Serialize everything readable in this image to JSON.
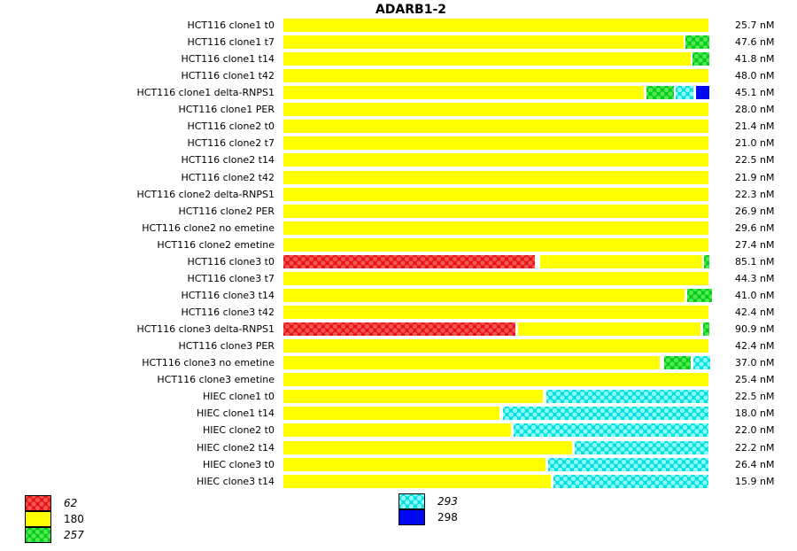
{
  "chart_data": {
    "type": "bar",
    "orientation": "horizontal-stacked",
    "title": "ADARB1-2",
    "unit": "nM",
    "bar_span_percent": [
      0,
      100
    ],
    "colors": {
      "62": {
        "base": "#e81414",
        "dot": "#f25454",
        "patterned": true
      },
      "180": {
        "base": "#ffff00",
        "patterned": false
      },
      "257": {
        "base": "#00cd1b",
        "dot": "#52e852",
        "patterned": true
      },
      "293": {
        "base": "#00dede",
        "dot": "#8afffb",
        "patterned": true
      },
      "298": {
        "base": "#0008f0",
        "patterned": false
      }
    },
    "legend": {
      "left_items": [
        {
          "id": "62",
          "italic": true
        },
        {
          "id": "180",
          "italic": false
        },
        {
          "id": "257",
          "italic": true
        }
      ],
      "right_items": [
        {
          "id": "293",
          "italic": true
        },
        {
          "id": "298",
          "italic": false
        }
      ]
    },
    "rows": [
      {
        "label": "HCT116 clone1 t0",
        "value": "25.7",
        "segments": [
          {
            "id": "180",
            "from": 0,
            "to": 100
          }
        ]
      },
      {
        "label": "HCT116 clone1 t7",
        "value": "47.6",
        "segments": [
          {
            "id": "180",
            "from": 0,
            "to": 94.2
          },
          {
            "id": "257",
            "from": 94.6,
            "to": 100.2
          }
        ]
      },
      {
        "label": "HCT116 clone1 t14",
        "value": "41.8",
        "segments": [
          {
            "id": "180",
            "from": 0,
            "to": 95.9
          },
          {
            "id": "257",
            "from": 96.3,
            "to": 100.2
          }
        ]
      },
      {
        "label": "HCT116 clone1 t42",
        "value": "48.0",
        "segments": [
          {
            "id": "180",
            "from": 0,
            "to": 100
          }
        ]
      },
      {
        "label": "HCT116 clone1 delta-RNPS1",
        "value": "45.1",
        "segments": [
          {
            "id": "180",
            "from": 0,
            "to": 84.8
          },
          {
            "id": "257",
            "from": 85.4,
            "to": 91.9
          },
          {
            "id": "293",
            "from": 92.3,
            "to": 96.5
          },
          {
            "id": "298",
            "from": 97.1,
            "to": 100.2
          }
        ]
      },
      {
        "label": "HCT116 clone1 PER",
        "value": "28.0",
        "segments": [
          {
            "id": "180",
            "from": 0,
            "to": 100
          }
        ]
      },
      {
        "label": "HCT116 clone2 t0",
        "value": "21.4",
        "segments": [
          {
            "id": "180",
            "from": 0,
            "to": 100
          }
        ]
      },
      {
        "label": "HCT116 clone2 t7",
        "value": "21.0",
        "segments": [
          {
            "id": "180",
            "from": 0,
            "to": 100
          }
        ]
      },
      {
        "label": "HCT116 clone2 t14",
        "value": "22.5",
        "segments": [
          {
            "id": "180",
            "from": 0,
            "to": 100
          }
        ]
      },
      {
        "label": "HCT116 clone2 t42",
        "value": "21.9",
        "segments": [
          {
            "id": "180",
            "from": 0,
            "to": 100
          }
        ]
      },
      {
        "label": "HCT116 clone2 delta-RNPS1",
        "value": "22.3",
        "segments": [
          {
            "id": "180",
            "from": 0,
            "to": 100
          }
        ]
      },
      {
        "label": "HCT116 clone2 PER",
        "value": "26.9",
        "segments": [
          {
            "id": "180",
            "from": 0,
            "to": 100
          }
        ]
      },
      {
        "label": "HCT116 clone2 no emetine",
        "value": "29.6",
        "segments": [
          {
            "id": "180",
            "from": 0,
            "to": 100
          }
        ]
      },
      {
        "label": "HCT116 clone2 emetine",
        "value": "27.4",
        "segments": [
          {
            "id": "180",
            "from": 0,
            "to": 100
          }
        ]
      },
      {
        "label": "HCT116 clone3 t0",
        "value": "85.1",
        "segments": [
          {
            "id": "62",
            "from": 0,
            "to": 59.2
          },
          {
            "id": "180",
            "from": 60.4,
            "to": 98.5
          },
          {
            "id": "257",
            "from": 99.0,
            "to": 100.2
          }
        ]
      },
      {
        "label": "HCT116 clone3 t7",
        "value": "44.3",
        "segments": [
          {
            "id": "180",
            "from": 0,
            "to": 100
          }
        ]
      },
      {
        "label": "HCT116 clone3 t14",
        "value": "41.0",
        "segments": [
          {
            "id": "180",
            "from": 0,
            "to": 94.4
          },
          {
            "id": "257",
            "from": 95.0,
            "to": 100.8
          }
        ]
      },
      {
        "label": "HCT116 clone3 t42",
        "value": "42.4",
        "segments": [
          {
            "id": "180",
            "from": 0,
            "to": 100
          }
        ]
      },
      {
        "label": "HCT116 clone3 delta-RNPS1",
        "value": "90.9",
        "segments": [
          {
            "id": "62",
            "from": 0,
            "to": 54.6
          },
          {
            "id": "180",
            "from": 55.2,
            "to": 98.1
          },
          {
            "id": "257",
            "from": 98.8,
            "to": 100.2
          }
        ]
      },
      {
        "label": "HCT116 clone3 PER",
        "value": "42.4",
        "segments": [
          {
            "id": "180",
            "from": 0,
            "to": 100
          }
        ]
      },
      {
        "label": "HCT116 clone3 no emetine",
        "value": "37.0",
        "segments": [
          {
            "id": "180",
            "from": 0,
            "to": 88.5
          },
          {
            "id": "257",
            "from": 89.6,
            "to": 95.8
          },
          {
            "id": "293",
            "from": 96.5,
            "to": 100.4
          }
        ]
      },
      {
        "label": "HCT116 clone3 emetine",
        "value": "25.4",
        "segments": [
          {
            "id": "180",
            "from": 0,
            "to": 100
          }
        ]
      },
      {
        "label": "HIEC clone1 t0",
        "value": "22.5",
        "segments": [
          {
            "id": "180",
            "from": 0,
            "to": 61.0
          },
          {
            "id": "293",
            "from": 61.9,
            "to": 100
          }
        ]
      },
      {
        "label": "HIEC clone1 t14",
        "value": "18.0",
        "segments": [
          {
            "id": "180",
            "from": 0,
            "to": 50.8
          },
          {
            "id": "293",
            "from": 51.7,
            "to": 100
          }
        ]
      },
      {
        "label": "HIEC clone2 t0",
        "value": "22.0",
        "segments": [
          {
            "id": "180",
            "from": 0,
            "to": 53.5
          },
          {
            "id": "293",
            "from": 54.2,
            "to": 100
          }
        ]
      },
      {
        "label": "HIEC clone2 t14",
        "value": "22.2",
        "segments": [
          {
            "id": "180",
            "from": 0,
            "to": 67.9
          },
          {
            "id": "293",
            "from": 68.5,
            "to": 100
          }
        ]
      },
      {
        "label": "HIEC clone3 t0",
        "value": "26.4",
        "segments": [
          {
            "id": "180",
            "from": 0,
            "to": 61.7
          },
          {
            "id": "293",
            "from": 62.3,
            "to": 100
          }
        ]
      },
      {
        "label": "HIEC clone3 t14",
        "value": "15.9",
        "segments": [
          {
            "id": "180",
            "from": 0,
            "to": 62.9
          },
          {
            "id": "293",
            "from": 63.5,
            "to": 100
          }
        ]
      }
    ]
  }
}
